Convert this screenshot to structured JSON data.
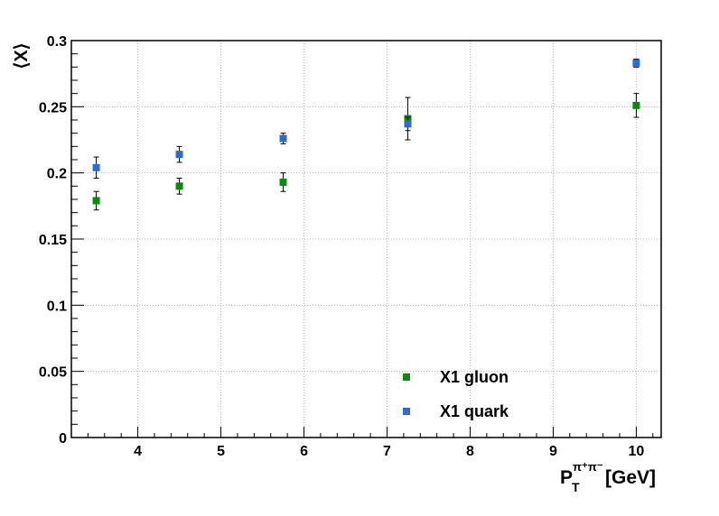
{
  "chart_data": {
    "type": "scatter",
    "xlabel": {
      "main": "P",
      "sub": "T",
      "sup": "π⁺π⁻",
      "unit": "[GeV]"
    },
    "ylabel": "⟨X⟩",
    "xlim": [
      3.2,
      10.3
    ],
    "ylim": [
      0,
      0.3
    ],
    "x_ticks": [
      4,
      5,
      6,
      7,
      8,
      9,
      10
    ],
    "y_ticks": [
      0,
      0.05,
      0.1,
      0.15,
      0.2,
      0.25,
      0.3
    ],
    "y_tick_labels": [
      "0",
      "0.05",
      "0.1",
      "0.15",
      "0.2",
      "0.25",
      "0.3"
    ],
    "grid": true,
    "legend_position": "bottom-right",
    "series": [
      {
        "name": "X1 gluon",
        "color": "#0a8a0a",
        "marker": "square",
        "x": [
          3.5,
          4.5,
          5.75,
          7.25,
          10.0
        ],
        "y": [
          0.179,
          0.19,
          0.193,
          0.241,
          0.251
        ],
        "err": [
          0.007,
          0.006,
          0.007,
          0.016,
          0.009
        ]
      },
      {
        "name": "X1 quark",
        "color": "#2f6bd1",
        "marker": "square",
        "x": [
          3.5,
          4.5,
          5.75,
          7.25,
          10.0
        ],
        "y": [
          0.204,
          0.214,
          0.226,
          0.237,
          0.283
        ],
        "err": [
          0.008,
          0.006,
          0.004,
          0.005,
          0.003
        ]
      }
    ]
  }
}
